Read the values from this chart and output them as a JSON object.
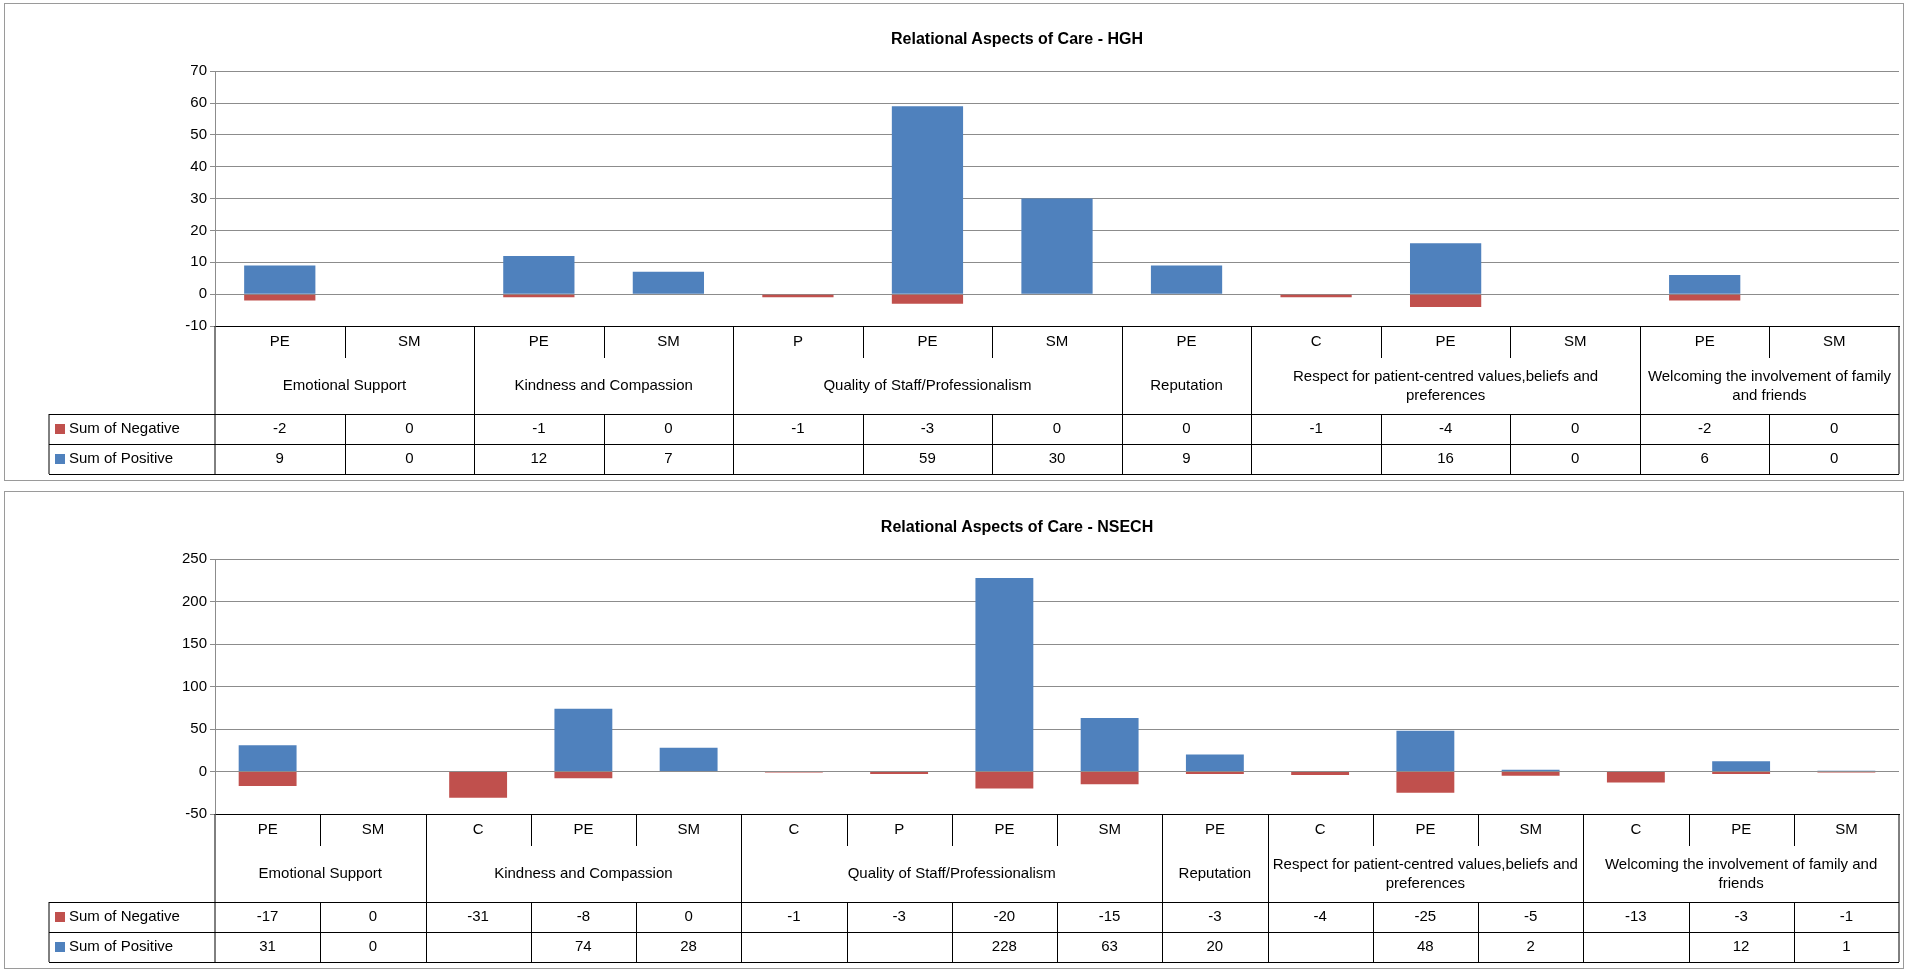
{
  "chart_data": [
    {
      "type": "bar",
      "title": "Relational Aspects of Care - HGH",
      "categories": [
        "PE",
        "SM",
        "PE",
        "SM",
        "P",
        "PE",
        "SM",
        "PE",
        "C",
        "PE",
        "SM",
        "PE",
        "SM"
      ],
      "series": [
        {
          "name": "Sum of Negative",
          "color": "#c0504d",
          "values": [
            -2,
            0,
            -1,
            0,
            -1,
            -3,
            0,
            0,
            -1,
            -4,
            0,
            -2,
            0
          ]
        },
        {
          "name": "Sum of Positive",
          "color": "#4f81bd",
          "values": [
            9,
            0,
            12,
            7,
            null,
            59,
            30,
            9,
            null,
            16,
            0,
            6,
            0
          ]
        }
      ],
      "stacked": true,
      "ylim": [
        -10,
        70
      ],
      "yticks": [
        -10,
        0,
        10,
        20,
        30,
        40,
        50,
        60,
        70
      ],
      "grid": "y",
      "legend": "bottom",
      "data_labels": true,
      "annotations": [
        "Emotional Support",
        "Kindness and Compassion",
        "Quality of Staff/Professionalism",
        "Reputation",
        "Respect for patient-centred values,beliefs and preferences",
        "Welcoming the involvement of family and friends"
      ]
    },
    {
      "type": "bar",
      "title": "Relational Aspects of Care - NSECH",
      "categories": [
        "PE",
        "SM",
        "C",
        "PE",
        "SM",
        "C",
        "P",
        "PE",
        "SM",
        "PE",
        "C",
        "PE",
        "SM",
        "C",
        "PE",
        "SM"
      ],
      "series": [
        {
          "name": "Sum of Negative",
          "color": "#c0504d",
          "values": [
            -17,
            0,
            -31,
            -8,
            0,
            -1,
            -3,
            -20,
            -15,
            -3,
            -4,
            -25,
            -5,
            -13,
            -3,
            -1
          ]
        },
        {
          "name": "Sum of Positive",
          "color": "#4f81bd",
          "values": [
            31,
            0,
            null,
            74,
            28,
            null,
            null,
            228,
            63,
            20,
            null,
            48,
            2,
            null,
            12,
            1
          ]
        }
      ],
      "stacked": true,
      "ylim": [
        -50,
        250
      ],
      "yticks": [
        -50,
        0,
        50,
        100,
        150,
        200,
        250
      ],
      "grid": "y",
      "legend": "bottom",
      "data_labels": true,
      "annotations": [
        "Emotional Support",
        "Kindness and Compassion",
        "Quality of Staff/Professionalism",
        "Reputation",
        "Respect for patient-centred values,beliefs and preferences",
        "Welcoming the involvement of family and friends"
      ]
    }
  ]
}
